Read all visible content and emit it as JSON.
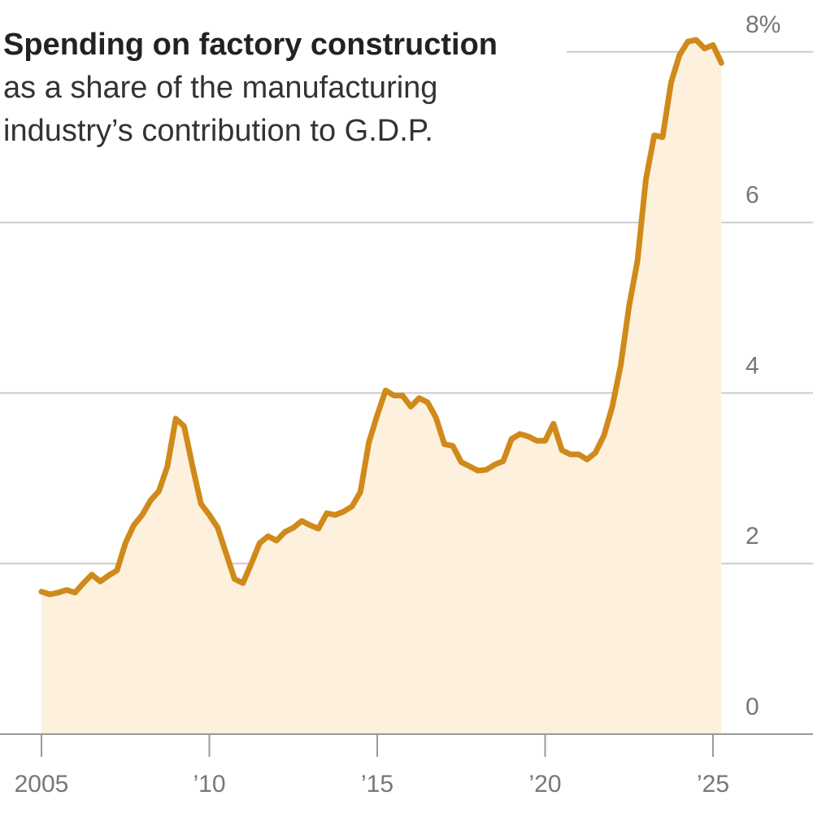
{
  "chart_data": {
    "type": "area",
    "title": "Spending on factory construction",
    "subtitle_lines": [
      "as a share of the manufacturing",
      "industry’s contribution to G.D.P."
    ],
    "xlabel": "",
    "ylabel": "",
    "xlim": [
      2005,
      2028
    ],
    "ylim": [
      0,
      8
    ],
    "x_ticks": [
      {
        "value": 2005,
        "label": "2005"
      },
      {
        "value": 2010,
        "label": "’10"
      },
      {
        "value": 2015,
        "label": "’15"
      },
      {
        "value": 2020,
        "label": "’20"
      },
      {
        "value": 2025,
        "label": "’25"
      }
    ],
    "y_ticks": [
      {
        "value": 0,
        "label": "0"
      },
      {
        "value": 2,
        "label": "2"
      },
      {
        "value": 4,
        "label": "4"
      },
      {
        "value": 6,
        "label": "6"
      },
      {
        "value": 8,
        "label": "8%"
      }
    ],
    "grid": true,
    "series": [
      {
        "x": [
          2005.0,
          2005.25,
          2005.5,
          2005.75,
          2006.0,
          2006.25,
          2006.5,
          2006.75,
          2007.0,
          2007.25,
          2007.5,
          2007.75,
          2008.0,
          2008.25,
          2008.5,
          2008.75,
          2009.0,
          2009.25,
          2009.5,
          2009.75,
          2010.0,
          2010.25,
          2010.5,
          2010.75,
          2011.0,
          2011.25,
          2011.5,
          2011.75,
          2012.0,
          2012.25,
          2012.5,
          2012.75,
          2013.0,
          2013.25,
          2013.5,
          2013.75,
          2014.0,
          2014.25,
          2014.5,
          2014.75,
          2015.0,
          2015.25,
          2015.5,
          2015.75,
          2016.0,
          2016.25,
          2016.5,
          2016.75,
          2017.0,
          2017.25,
          2017.5,
          2017.75,
          2018.0,
          2018.25,
          2018.5,
          2018.75,
          2019.0,
          2019.25,
          2019.5,
          2019.75,
          2020.0,
          2020.25,
          2020.5,
          2020.75,
          2021.0,
          2021.25,
          2021.5,
          2021.75,
          2022.0,
          2022.25,
          2022.5,
          2022.75,
          2023.0,
          2023.25,
          2023.5,
          2023.75,
          2024.0,
          2024.25,
          2024.5,
          2024.75,
          2025.0,
          2025.25
        ],
        "values": [
          1.67,
          1.64,
          1.66,
          1.69,
          1.66,
          1.77,
          1.87,
          1.79,
          1.86,
          1.92,
          2.24,
          2.45,
          2.57,
          2.74,
          2.85,
          3.14,
          3.7,
          3.61,
          3.14,
          2.7,
          2.57,
          2.42,
          2.12,
          1.82,
          1.77,
          2.0,
          2.24,
          2.32,
          2.27,
          2.37,
          2.42,
          2.5,
          2.45,
          2.41,
          2.59,
          2.57,
          2.61,
          2.67,
          2.84,
          3.42,
          3.74,
          4.03,
          3.97,
          3.97,
          3.84,
          3.94,
          3.89,
          3.71,
          3.4,
          3.38,
          3.19,
          3.14,
          3.09,
          3.1,
          3.16,
          3.2,
          3.46,
          3.52,
          3.49,
          3.44,
          3.44,
          3.64,
          3.33,
          3.28,
          3.28,
          3.22,
          3.3,
          3.5,
          3.84,
          4.32,
          5.02,
          5.55,
          6.5,
          7.02,
          7.0,
          7.64,
          7.96,
          8.12,
          8.14,
          8.04,
          8.08,
          7.87
        ]
      }
    ],
    "colors": {
      "line": "#D08A1A",
      "fill": "#FDF1DE",
      "grid": "#CCCCCC",
      "axis": "#999999",
      "text_dark": "#222222",
      "text_tick": "#777777"
    }
  }
}
